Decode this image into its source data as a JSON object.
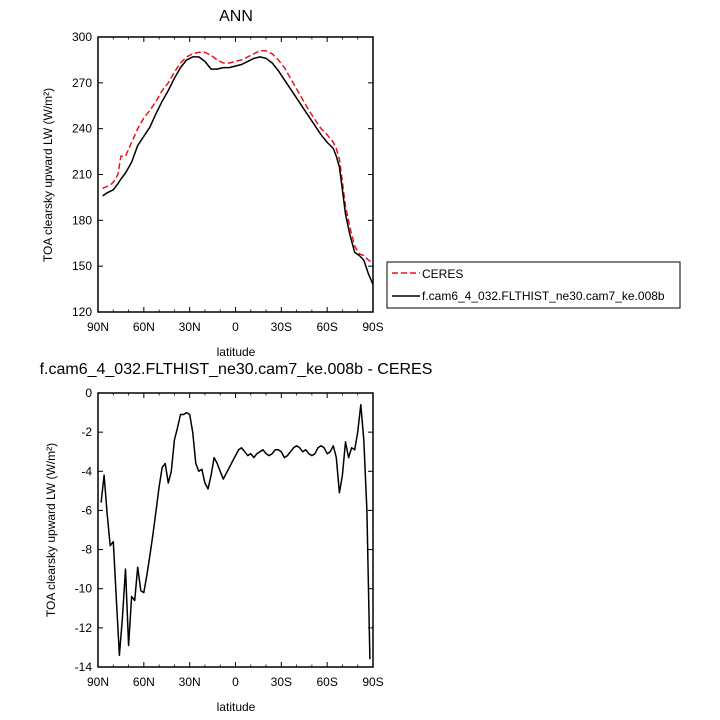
{
  "chart_data": [
    {
      "type": "line",
      "title": "ANN",
      "xlabel": "latitude",
      "ylabel": "TOA clearsky upward LW (W/m²)",
      "xlim": [
        90,
        -90
      ],
      "ylim": [
        120,
        300
      ],
      "x_ticks": [
        {
          "value": 90,
          "label": "90N"
        },
        {
          "value": 60,
          "label": "60N"
        },
        {
          "value": 30,
          "label": "30N"
        },
        {
          "value": 0,
          "label": "0"
        },
        {
          "value": -30,
          "label": "30S"
        },
        {
          "value": -60,
          "label": "60S"
        },
        {
          "value": -90,
          "label": "90S"
        }
      ],
      "y_ticks": [
        120,
        150,
        180,
        210,
        240,
        270,
        300
      ],
      "legend_position": "right",
      "series": [
        {
          "name": "CERES",
          "color": "#e8141c",
          "dash": true,
          "x": [
            87,
            82,
            80,
            77,
            75,
            72,
            68,
            64,
            60,
            56,
            52,
            48,
            44,
            40,
            36,
            32,
            28,
            24,
            20,
            16,
            12,
            8,
            4,
            0,
            -4,
            -8,
            -12,
            -16,
            -20,
            -24,
            -28,
            -32,
            -36,
            -40,
            -44,
            -48,
            -52,
            -56,
            -60,
            -64,
            -66,
            -68,
            -70,
            -72,
            -75,
            -78,
            -81,
            -84,
            -87,
            -90
          ],
          "y": [
            201,
            203,
            205,
            210,
            222,
            222,
            231,
            240,
            247,
            252,
            258,
            265,
            270,
            277,
            283,
            287,
            289,
            290,
            290,
            288,
            285,
            283,
            283,
            284,
            285,
            287,
            289,
            291,
            291,
            289,
            285,
            280,
            273,
            266,
            259,
            252,
            246,
            240,
            236,
            231,
            227,
            220,
            205,
            189,
            175,
            163,
            158,
            157,
            154,
            152
          ]
        },
        {
          "name": "f.cam6_4_032.FLTHIST_ne30.cam7_ke.008b",
          "color": "#000000",
          "dash": false,
          "x": [
            87,
            84,
            80,
            77,
            75,
            72,
            68,
            64,
            60,
            56,
            52,
            48,
            44,
            40,
            36,
            32,
            28,
            24,
            20,
            16,
            12,
            8,
            4,
            0,
            -4,
            -8,
            -12,
            -16,
            -20,
            -24,
            -28,
            -32,
            -36,
            -40,
            -44,
            -48,
            -52,
            -56,
            -60,
            -64,
            -66,
            -68,
            -70,
            -72,
            -75,
            -78,
            -81,
            -84,
            -87,
            -90
          ],
          "y": [
            196,
            198,
            200,
            204,
            207,
            211,
            218,
            229,
            235,
            241,
            250,
            258,
            265,
            273,
            280,
            285,
            287,
            287,
            284,
            279,
            279,
            280,
            280,
            281,
            282,
            284,
            286,
            287,
            286,
            283,
            278,
            272,
            266,
            260,
            254,
            248,
            242,
            236,
            231,
            227,
            222,
            215,
            200,
            184,
            170,
            159,
            157,
            154,
            145,
            138
          ]
        }
      ]
    },
    {
      "type": "line",
      "title": "f.cam6_4_032.FLTHIST_ne30.cam7_ke.008b - CERES",
      "xlabel": "latitude",
      "ylabel": "TOA clearsky upward LW (W/m²)",
      "xlim": [
        90,
        -90
      ],
      "ylim": [
        -14,
        0
      ],
      "x_ticks": [
        {
          "value": 90,
          "label": "90N"
        },
        {
          "value": 60,
          "label": "60N"
        },
        {
          "value": 30,
          "label": "30N"
        },
        {
          "value": 0,
          "label": "0"
        },
        {
          "value": -30,
          "label": "30S"
        },
        {
          "value": -60,
          "label": "60S"
        },
        {
          "value": -90,
          "label": "90S"
        }
      ],
      "y_ticks": [
        -14,
        -12,
        -10,
        -8,
        -6,
        -4,
        -2,
        0
      ],
      "series": [
        {
          "color": "#000000",
          "dash": false,
          "x": [
            88,
            86,
            84,
            82,
            80,
            78,
            76,
            74,
            72,
            70,
            68,
            66,
            64,
            62,
            60,
            58,
            56,
            54,
            52,
            50,
            48,
            46,
            44,
            42,
            40,
            38,
            36,
            34,
            32,
            30,
            28,
            26,
            24,
            22,
            20,
            18,
            16,
            14,
            12,
            10,
            8,
            6,
            4,
            2,
            0,
            -2,
            -4,
            -6,
            -8,
            -10,
            -12,
            -14,
            -16,
            -18,
            -20,
            -22,
            -24,
            -26,
            -28,
            -30,
            -32,
            -34,
            -36,
            -38,
            -40,
            -42,
            -44,
            -46,
            -48,
            -50,
            -52,
            -54,
            -56,
            -58,
            -60,
            -62,
            -64,
            -66,
            -68,
            -70,
            -72,
            -74,
            -76,
            -78,
            -80,
            -82,
            -84,
            -86,
            -88
          ],
          "y": [
            -5.6,
            -4.2,
            -6.2,
            -7.8,
            -7.6,
            -10.5,
            -13.4,
            -11.5,
            -9.0,
            -12.9,
            -10.4,
            -10.6,
            -8.9,
            -10.1,
            -10.2,
            -9.3,
            -8.3,
            -7.2,
            -6.0,
            -4.8,
            -3.8,
            -3.6,
            -4.6,
            -4.0,
            -2.4,
            -1.8,
            -1.1,
            -1.1,
            -1.0,
            -1.1,
            -2.0,
            -3.6,
            -4.0,
            -3.9,
            -4.6,
            -4.9,
            -4.2,
            -3.3,
            -3.6,
            -4.0,
            -4.4,
            -4.1,
            -3.8,
            -3.5,
            -3.2,
            -2.9,
            -2.8,
            -3.0,
            -3.2,
            -3.1,
            -3.3,
            -3.1,
            -3.0,
            -2.9,
            -3.1,
            -3.2,
            -3.1,
            -2.9,
            -2.9,
            -3.0,
            -3.3,
            -3.2,
            -3.0,
            -2.8,
            -2.7,
            -2.8,
            -3.0,
            -2.9,
            -3.1,
            -3.2,
            -3.1,
            -2.8,
            -2.7,
            -2.8,
            -3.1,
            -3.0,
            -2.7,
            -3.3,
            -5.1,
            -4.2,
            -2.5,
            -3.3,
            -2.8,
            -2.9,
            -2.0,
            -0.6,
            -2.4,
            -6.0,
            -13.6
          ]
        }
      ]
    }
  ]
}
